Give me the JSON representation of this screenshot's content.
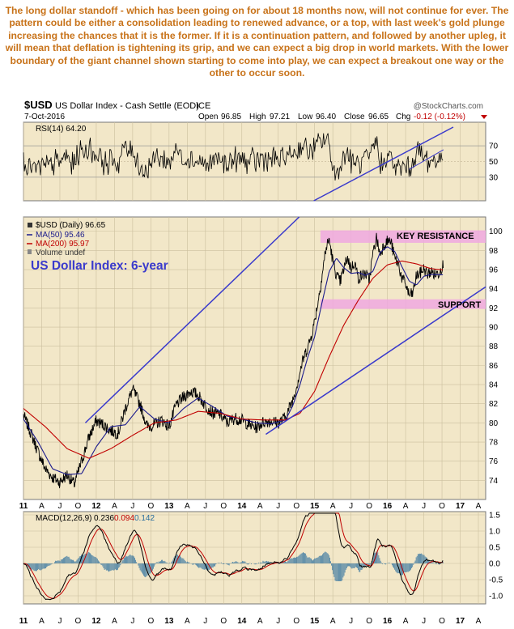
{
  "commentary": "The long dollar standoff - which has been going on for about 18 months now, will not continue for ever. The pattern could be either a consolidation leading to renewed advance, or a top, with last week's gold plunge increasing the chances that it is the former. If it is a continuation pattern, and followed by another upleg, it will mean that deflation is tightening its grip, and we can expect a big drop in world markets. With the lower boundary of the giant channel shown starting to come into play, we can expect a breakout one way or the other to occur soon.",
  "chart_data": {
    "type": "line",
    "symbol": "$USD",
    "name": "US Dollar Index - Cash Settle (EOD)",
    "exchange": "ICE",
    "date": "7-Oct-2016",
    "source": "@StockCharts.com",
    "quote": {
      "open_label": "Open",
      "open": "96.85",
      "high_label": "High",
      "high": "97.21",
      "low_label": "Low",
      "low": "96.40",
      "close_label": "Close",
      "close": "96.65",
      "chg_label": "Chg",
      "chg": "-0.12 (-0.12%)"
    },
    "rsi": {
      "label": "RSI(14) 64.20",
      "ylim": [
        0,
        100
      ],
      "ticks": [
        "70",
        "50",
        "30"
      ],
      "tick_values": [
        70,
        50,
        30
      ]
    },
    "price": {
      "legend": [
        "$USD (Daily) 96.65",
        "MA(50) 95.46",
        "MA(200) 95.97",
        "Volume undef"
      ],
      "ylim": [
        72,
        101.5
      ],
      "ticks": [
        "100",
        "98",
        "96",
        "94",
        "92",
        "90",
        "88",
        "86",
        "84",
        "82",
        "80",
        "78",
        "76",
        "74"
      ],
      "tick_values": [
        100,
        98,
        96,
        94,
        92,
        90,
        88,
        86,
        84,
        82,
        80,
        78,
        76,
        74
      ],
      "series": [
        {
          "name": "$USD (Daily) 96.65",
          "color": "#000000",
          "x": [
            2011.0,
            2011.1,
            2011.2,
            2011.3,
            2011.4,
            2011.5,
            2011.6,
            2011.7,
            2011.8,
            2011.9,
            2012.0,
            2012.1,
            2012.2,
            2012.3,
            2012.4,
            2012.5,
            2012.6,
            2012.7,
            2012.8,
            2012.9,
            2013.0,
            2013.1,
            2013.2,
            2013.3,
            2013.4,
            2013.5,
            2013.6,
            2013.7,
            2013.8,
            2013.9,
            2014.0,
            2014.1,
            2014.2,
            2014.3,
            2014.4,
            2014.5,
            2014.6,
            2014.65,
            2014.7,
            2014.75,
            2014.8,
            2014.85,
            2014.9,
            2014.95,
            2015.0,
            2015.05,
            2015.1,
            2015.15,
            2015.2,
            2015.25,
            2015.3,
            2015.35,
            2015.4,
            2015.45,
            2015.5,
            2015.55,
            2015.6,
            2015.65,
            2015.7,
            2015.75,
            2015.8,
            2015.85,
            2015.9,
            2015.95,
            2016.0,
            2016.05,
            2016.1,
            2016.15,
            2016.2,
            2016.25,
            2016.3,
            2016.35,
            2016.4,
            2016.45,
            2016.5,
            2016.55,
            2016.6,
            2016.65,
            2016.7,
            2016.77
          ],
          "y": [
            80.8,
            79.0,
            77.0,
            75.2,
            74.3,
            73.8,
            74.6,
            73.6,
            76.0,
            78.5,
            80.2,
            79.8,
            79.2,
            78.9,
            81.5,
            83.5,
            82.0,
            79.6,
            79.8,
            80.3,
            79.6,
            81.9,
            82.7,
            83.3,
            82.9,
            81.8,
            81.0,
            80.9,
            80.0,
            80.5,
            80.3,
            79.8,
            79.5,
            80.1,
            80.2,
            80.0,
            80.6,
            81.5,
            82.4,
            83.7,
            85.4,
            86.8,
            87.8,
            88.9,
            90.6,
            92.8,
            95.2,
            98.0,
            99.2,
            96.9,
            95.4,
            94.7,
            96.0,
            97.3,
            96.1,
            96.8,
            95.1,
            95.4,
            95.6,
            94.9,
            97.6,
            99.3,
            97.6,
            98.6,
            99.0,
            98.9,
            97.2,
            96.6,
            95.1,
            94.5,
            93.3,
            93.5,
            95.4,
            95.6,
            96.1,
            95.5,
            95.8,
            95.5,
            95.6,
            96.6
          ]
        },
        {
          "name": "MA(50) 95.46",
          "color": "#1a1a8c",
          "x": [
            2011.0,
            2011.2,
            2011.4,
            2011.6,
            2011.8,
            2012.0,
            2012.2,
            2012.4,
            2012.6,
            2012.8,
            2013.0,
            2013.2,
            2013.4,
            2013.6,
            2013.8,
            2014.0,
            2014.2,
            2014.4,
            2014.6,
            2014.7,
            2014.8,
            2014.9,
            2015.0,
            2015.1,
            2015.2,
            2015.3,
            2015.4,
            2015.5,
            2015.6,
            2015.7,
            2015.8,
            2015.9,
            2016.0,
            2016.1,
            2016.2,
            2016.3,
            2016.4,
            2016.5,
            2016.6,
            2016.77
          ],
          "y": [
            80.4,
            78.0,
            75.2,
            74.6,
            74.7,
            77.5,
            79.6,
            79.8,
            81.7,
            80.4,
            80.0,
            81.5,
            82.6,
            81.7,
            80.7,
            80.4,
            80.0,
            79.9,
            80.3,
            81.8,
            84.0,
            86.7,
            89.0,
            92.5,
            95.8,
            97.2,
            96.2,
            95.6,
            95.7,
            95.4,
            95.8,
            97.8,
            98.4,
            97.9,
            96.3,
            94.8,
            94.4,
            95.3,
            95.5,
            95.46
          ]
        },
        {
          "name": "MA(200) 95.97",
          "color": "#c00000",
          "x": [
            2011.0,
            2011.3,
            2011.6,
            2011.9,
            2012.2,
            2012.5,
            2012.8,
            2013.1,
            2013.4,
            2013.7,
            2014.0,
            2014.3,
            2014.6,
            2014.8,
            2015.0,
            2015.2,
            2015.4,
            2015.6,
            2015.8,
            2016.0,
            2016.2,
            2016.4,
            2016.6,
            2016.77
          ],
          "y": [
            81.5,
            79.6,
            77.3,
            76.3,
            77.3,
            78.7,
            80.0,
            80.3,
            81.2,
            81.0,
            80.4,
            80.3,
            80.3,
            81.0,
            83.3,
            86.9,
            90.2,
            92.8,
            95.1,
            96.5,
            96.9,
            96.6,
            96.1,
            95.97
          ]
        }
      ]
    },
    "annotations": {
      "title": "US Dollar Index: 6-year",
      "key_resistance": "KEY RESISTANCE",
      "support": "SUPPORT",
      "resistance_zone": [
        98.8,
        100.1
      ],
      "support_zone": [
        91.9,
        92.9
      ],
      "channel_upper": [
        [
          2011.85,
          80.0
        ],
        [
          2016.77,
          116.0
        ]
      ],
      "channel_lower": [
        [
          2014.33,
          78.8
        ],
        [
          2016.77,
          94.2
        ]
      ],
      "channel_upper_rsi_y": [
        72,
        100
      ],
      "rsi_trend": [
        [
          2016.3,
          40
        ],
        [
          2016.77,
          65
        ]
      ]
    },
    "macd": {
      "label": "MACD(12,26,9)",
      "macd_value": "0.236",
      "signal_value": "0.094",
      "hist_value": "0.142",
      "ylim": [
        -1.25,
        1.6
      ],
      "ticks": [
        "1.5",
        "1.0",
        "0.5",
        "0.0",
        "-0.5",
        "-1.0"
      ],
      "tick_values": [
        1.5,
        1.0,
        0.5,
        0.0,
        -0.5,
        -1.0
      ]
    },
    "x_axis": {
      "xlim": [
        2011.0,
        2017.35
      ],
      "labels": [
        "11",
        "A",
        "J",
        "O",
        "12",
        "A",
        "J",
        "O",
        "13",
        "A",
        "J",
        "O",
        "14",
        "A",
        "J",
        "O",
        "15",
        "A",
        "J",
        "O",
        "16",
        "A",
        "J",
        "O",
        "17",
        "A"
      ],
      "label_positions": [
        2011.0,
        2011.25,
        2011.5,
        2011.75,
        2012.0,
        2012.25,
        2012.5,
        2012.75,
        2013.0,
        2013.25,
        2013.5,
        2013.75,
        2014.0,
        2014.25,
        2014.5,
        2014.75,
        2015.0,
        2015.25,
        2015.5,
        2015.75,
        2016.0,
        2016.25,
        2016.5,
        2016.75,
        2017.0,
        2017.25
      ]
    }
  }
}
